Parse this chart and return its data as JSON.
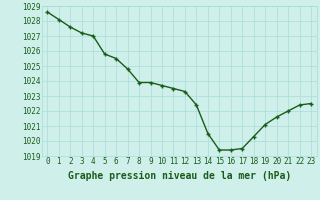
{
  "x": [
    0,
    1,
    2,
    3,
    4,
    5,
    6,
    7,
    8,
    9,
    10,
    11,
    12,
    13,
    14,
    15,
    16,
    17,
    18,
    19,
    20,
    21,
    22,
    23
  ],
  "y": [
    1028.6,
    1028.1,
    1027.6,
    1027.2,
    1027.0,
    1025.8,
    1025.5,
    1024.8,
    1023.9,
    1023.9,
    1023.7,
    1023.5,
    1023.3,
    1022.4,
    1020.5,
    1019.4,
    1019.4,
    1019.5,
    1020.3,
    1021.1,
    1021.6,
    1022.0,
    1022.4,
    1022.5
  ],
  "line_color": "#1a5c1a",
  "marker": "+",
  "markersize": 3,
  "linewidth": 1.0,
  "bg_color": "#cff0ea",
  "grid_color": "#a8ddd6",
  "title": "Graphe pression niveau de la mer (hPa)",
  "ylim": [
    1019,
    1029
  ],
  "xlim_min": -0.5,
  "xlim_max": 23.5,
  "yticks": [
    1019,
    1020,
    1021,
    1022,
    1023,
    1024,
    1025,
    1026,
    1027,
    1028,
    1029
  ],
  "xticks": [
    0,
    1,
    2,
    3,
    4,
    5,
    6,
    7,
    8,
    9,
    10,
    11,
    12,
    13,
    14,
    15,
    16,
    17,
    18,
    19,
    20,
    21,
    22,
    23
  ],
  "tick_fontsize": 5.5,
  "title_fontsize": 7.0
}
